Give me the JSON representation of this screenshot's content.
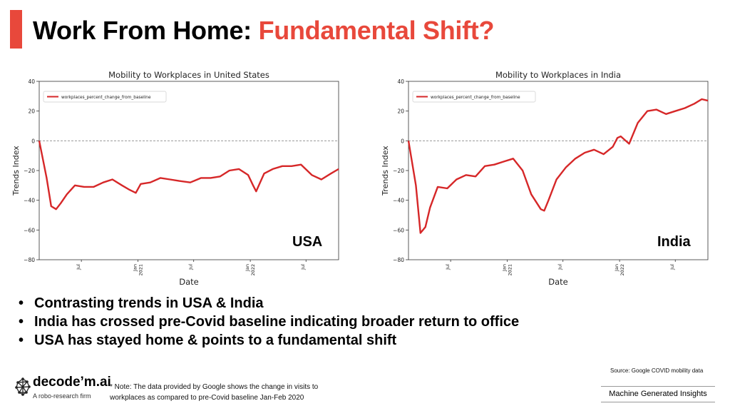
{
  "header": {
    "title_prefix": "Work From Home: ",
    "title_highlight": "Fundamental Shift?"
  },
  "colors": {
    "accent": "#e8483b",
    "series": "#d62728"
  },
  "chart_data": [
    {
      "type": "line",
      "title": "Mobility to Workplaces in United States",
      "xlabel": "Date",
      "ylabel": "Trends Index",
      "ylim": [
        -80,
        40
      ],
      "yticks": [
        40,
        20,
        0,
        -20,
        -40,
        -60,
        -80
      ],
      "ytick_labels": [
        "40",
        "20",
        "0",
        "−20",
        "−40",
        "−60",
        "−80"
      ],
      "xlim": [
        "2020-02-15",
        "2022-10-15"
      ],
      "xticks": [
        {
          "date": "2020-07-01",
          "label": [
            "Jul"
          ]
        },
        {
          "date": "2021-01-01",
          "label": [
            "Jan",
            "2021"
          ]
        },
        {
          "date": "2021-07-01",
          "label": [
            "Jul"
          ]
        },
        {
          "date": "2022-01-01",
          "label": [
            "Jan",
            "2022"
          ]
        },
        {
          "date": "2022-07-01",
          "label": [
            "Jul"
          ]
        }
      ],
      "baseline": 0,
      "grid": false,
      "legend": "top-left",
      "series": [
        {
          "name": "workplaces_percent_change_from_baseline",
          "x": [
            "2020-02-15",
            "2020-03-10",
            "2020-03-25",
            "2020-04-10",
            "2020-04-25",
            "2020-05-15",
            "2020-06-10",
            "2020-07-10",
            "2020-08-10",
            "2020-09-10",
            "2020-10-10",
            "2020-11-10",
            "2020-12-05",
            "2020-12-25",
            "2021-01-10",
            "2021-02-10",
            "2021-03-15",
            "2021-04-15",
            "2021-05-15",
            "2021-06-20",
            "2021-07-25",
            "2021-08-25",
            "2021-09-25",
            "2021-10-25",
            "2021-11-25",
            "2021-12-25",
            "2022-01-10",
            "2022-01-20",
            "2022-02-15",
            "2022-03-15",
            "2022-04-15",
            "2022-05-15",
            "2022-06-15",
            "2022-07-20",
            "2022-08-20",
            "2022-09-20",
            "2022-10-15"
          ],
          "values": [
            0,
            -25,
            -44,
            -46,
            -42,
            -36,
            -30,
            -31,
            -31,
            -28,
            -26,
            -30,
            -33,
            -35,
            -29,
            -28,
            -25,
            -26,
            -27,
            -28,
            -25,
            -25,
            -24,
            -20,
            -19,
            -23,
            -30,
            -34,
            -22,
            -19,
            -17,
            -17,
            -16,
            -23,
            -26,
            -22,
            -19
          ]
        }
      ]
    },
    {
      "type": "line",
      "title": "Mobility to Workplaces in India",
      "xlabel": "Date",
      "ylabel": "Trends Index",
      "ylim": [
        -80,
        40
      ],
      "yticks": [
        40,
        20,
        0,
        -20,
        -40,
        -60,
        -80
      ],
      "ytick_labels": [
        "40",
        "20",
        "0",
        "−20",
        "−40",
        "−60",
        "−80"
      ],
      "xlim": [
        "2020-02-15",
        "2022-10-15"
      ],
      "xticks": [
        {
          "date": "2020-07-01",
          "label": [
            "Jul"
          ]
        },
        {
          "date": "2021-01-01",
          "label": [
            "Jan",
            "2021"
          ]
        },
        {
          "date": "2021-07-01",
          "label": [
            "Jul"
          ]
        },
        {
          "date": "2022-01-01",
          "label": [
            "Jan",
            "2022"
          ]
        },
        {
          "date": "2022-07-01",
          "label": [
            "Jul"
          ]
        }
      ],
      "baseline": 0,
      "grid": false,
      "legend": "top-left",
      "series": [
        {
          "name": "workplaces_percent_change_from_baseline",
          "x": [
            "2020-02-15",
            "2020-03-10",
            "2020-03-25",
            "2020-04-10",
            "2020-04-25",
            "2020-05-20",
            "2020-06-20",
            "2020-07-20",
            "2020-08-20",
            "2020-09-20",
            "2020-10-20",
            "2020-11-20",
            "2020-12-20",
            "2021-01-20",
            "2021-02-20",
            "2021-03-20",
            "2021-04-20",
            "2021-05-01",
            "2021-05-15",
            "2021-06-10",
            "2021-07-10",
            "2021-08-10",
            "2021-09-10",
            "2021-10-10",
            "2021-11-10",
            "2021-12-10",
            "2021-12-25",
            "2022-01-05",
            "2022-02-01",
            "2022-03-01",
            "2022-04-01",
            "2022-05-01",
            "2022-06-01",
            "2022-07-01",
            "2022-08-01",
            "2022-09-01",
            "2022-09-25",
            "2022-10-15"
          ],
          "values": [
            0,
            -30,
            -62,
            -58,
            -45,
            -31,
            -32,
            -26,
            -23,
            -24,
            -17,
            -16,
            -14,
            -12,
            -20,
            -36,
            -46,
            -47,
            -40,
            -26,
            -18,
            -12,
            -8,
            -6,
            -9,
            -4,
            2,
            3,
            -2,
            12,
            20,
            21,
            18,
            20,
            22,
            25,
            28,
            27
          ]
        }
      ]
    }
  ],
  "labels": {
    "usa": "USA",
    "india": "India"
  },
  "bullets": [
    "Contrasting trends in USA & India",
    "India has crossed pre-Covid baseline indicating broader return to office",
    "USA has stayed home & points to a fundamental shift"
  ],
  "logo": {
    "name": "decode’m.ai",
    "tagline": "A robo-research firm",
    "icon": "brain-circuit-icon"
  },
  "note": "* Note: The data provided by Google shows the change in visits to workplaces as compared to pre-Covid baseline Jan-Feb 2020",
  "source": "Source: Google COVID mobility data",
  "footer": {
    "tag": "Machine Generated Insights"
  }
}
